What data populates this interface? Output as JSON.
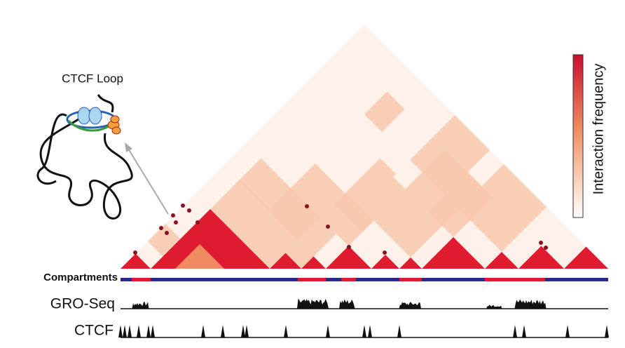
{
  "diagram": {
    "loop_label": "CTCF Loop",
    "colorbar_label": "Interaction frequency",
    "tracks": [
      "Compartments",
      "GRO-Seq",
      "CTCF"
    ]
  }
}
